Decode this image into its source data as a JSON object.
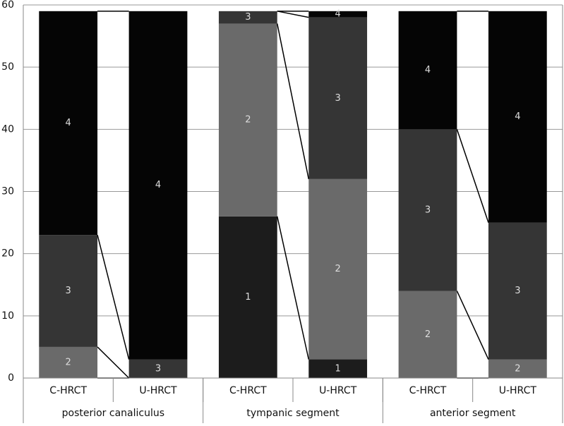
{
  "chart_data": {
    "type": "stacked-bar",
    "categories": [
      "C-HRCT",
      "U-HRCT",
      "C-HRCT",
      "U-HRCT",
      "C-HRCT",
      "U-HRCT"
    ],
    "groups": [
      "posterior canaliculus",
      "tympanic segment",
      "anterior segment"
    ],
    "series": [
      {
        "name": "1",
        "color": "#1c1c1c",
        "values": [
          0,
          0,
          26,
          3,
          0,
          0
        ]
      },
      {
        "name": "2",
        "color": "#6a6a6a",
        "values": [
          5,
          0,
          31,
          29,
          14,
          3
        ]
      },
      {
        "name": "3",
        "color": "#353535",
        "values": [
          18,
          3,
          2,
          26,
          26,
          22
        ]
      },
      {
        "name": "4",
        "color": "#050505",
        "values": [
          36,
          56,
          0,
          1,
          19,
          34
        ]
      }
    ],
    "ylim": [
      0,
      60
    ],
    "yticks": [
      0,
      10,
      20,
      30,
      40,
      50,
      60
    ],
    "grid": true
  }
}
